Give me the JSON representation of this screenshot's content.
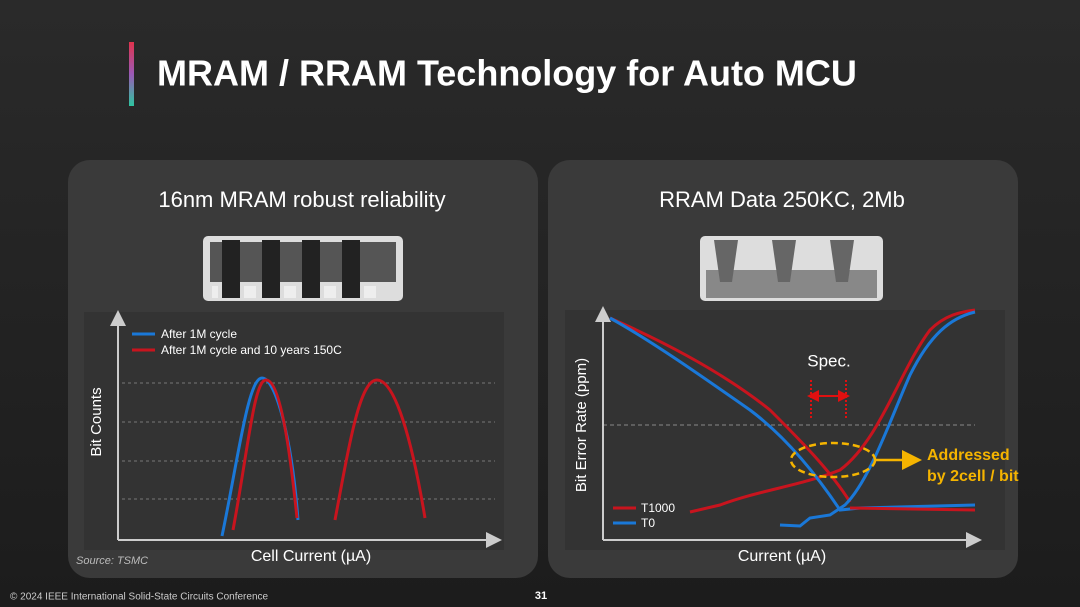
{
  "header": {
    "title": "MRAM / RRAM Technology for Auto MCU"
  },
  "panels": [
    {
      "title": "16nm MRAM robust reliability",
      "legend": [
        "After 1M cycle",
        "After 1M cycle and 10 years 150C"
      ],
      "y_label": "Bit Counts",
      "x_label": "Cell Current (µA)",
      "source": "Source: TSMC"
    },
    {
      "title": "RRAM Data 250KC, 2Mb",
      "y_label": "Bit Error Rate (ppm)",
      "x_label": "Current (µA)",
      "legend": [
        "T1000",
        "T0"
      ],
      "annotations": [
        "Spec.",
        "Addressed",
        "by 2cell / bit"
      ]
    }
  ],
  "footer": {
    "copyright": "© 2024 IEEE International Solid-State Circuits Conference",
    "page": "31"
  }
}
